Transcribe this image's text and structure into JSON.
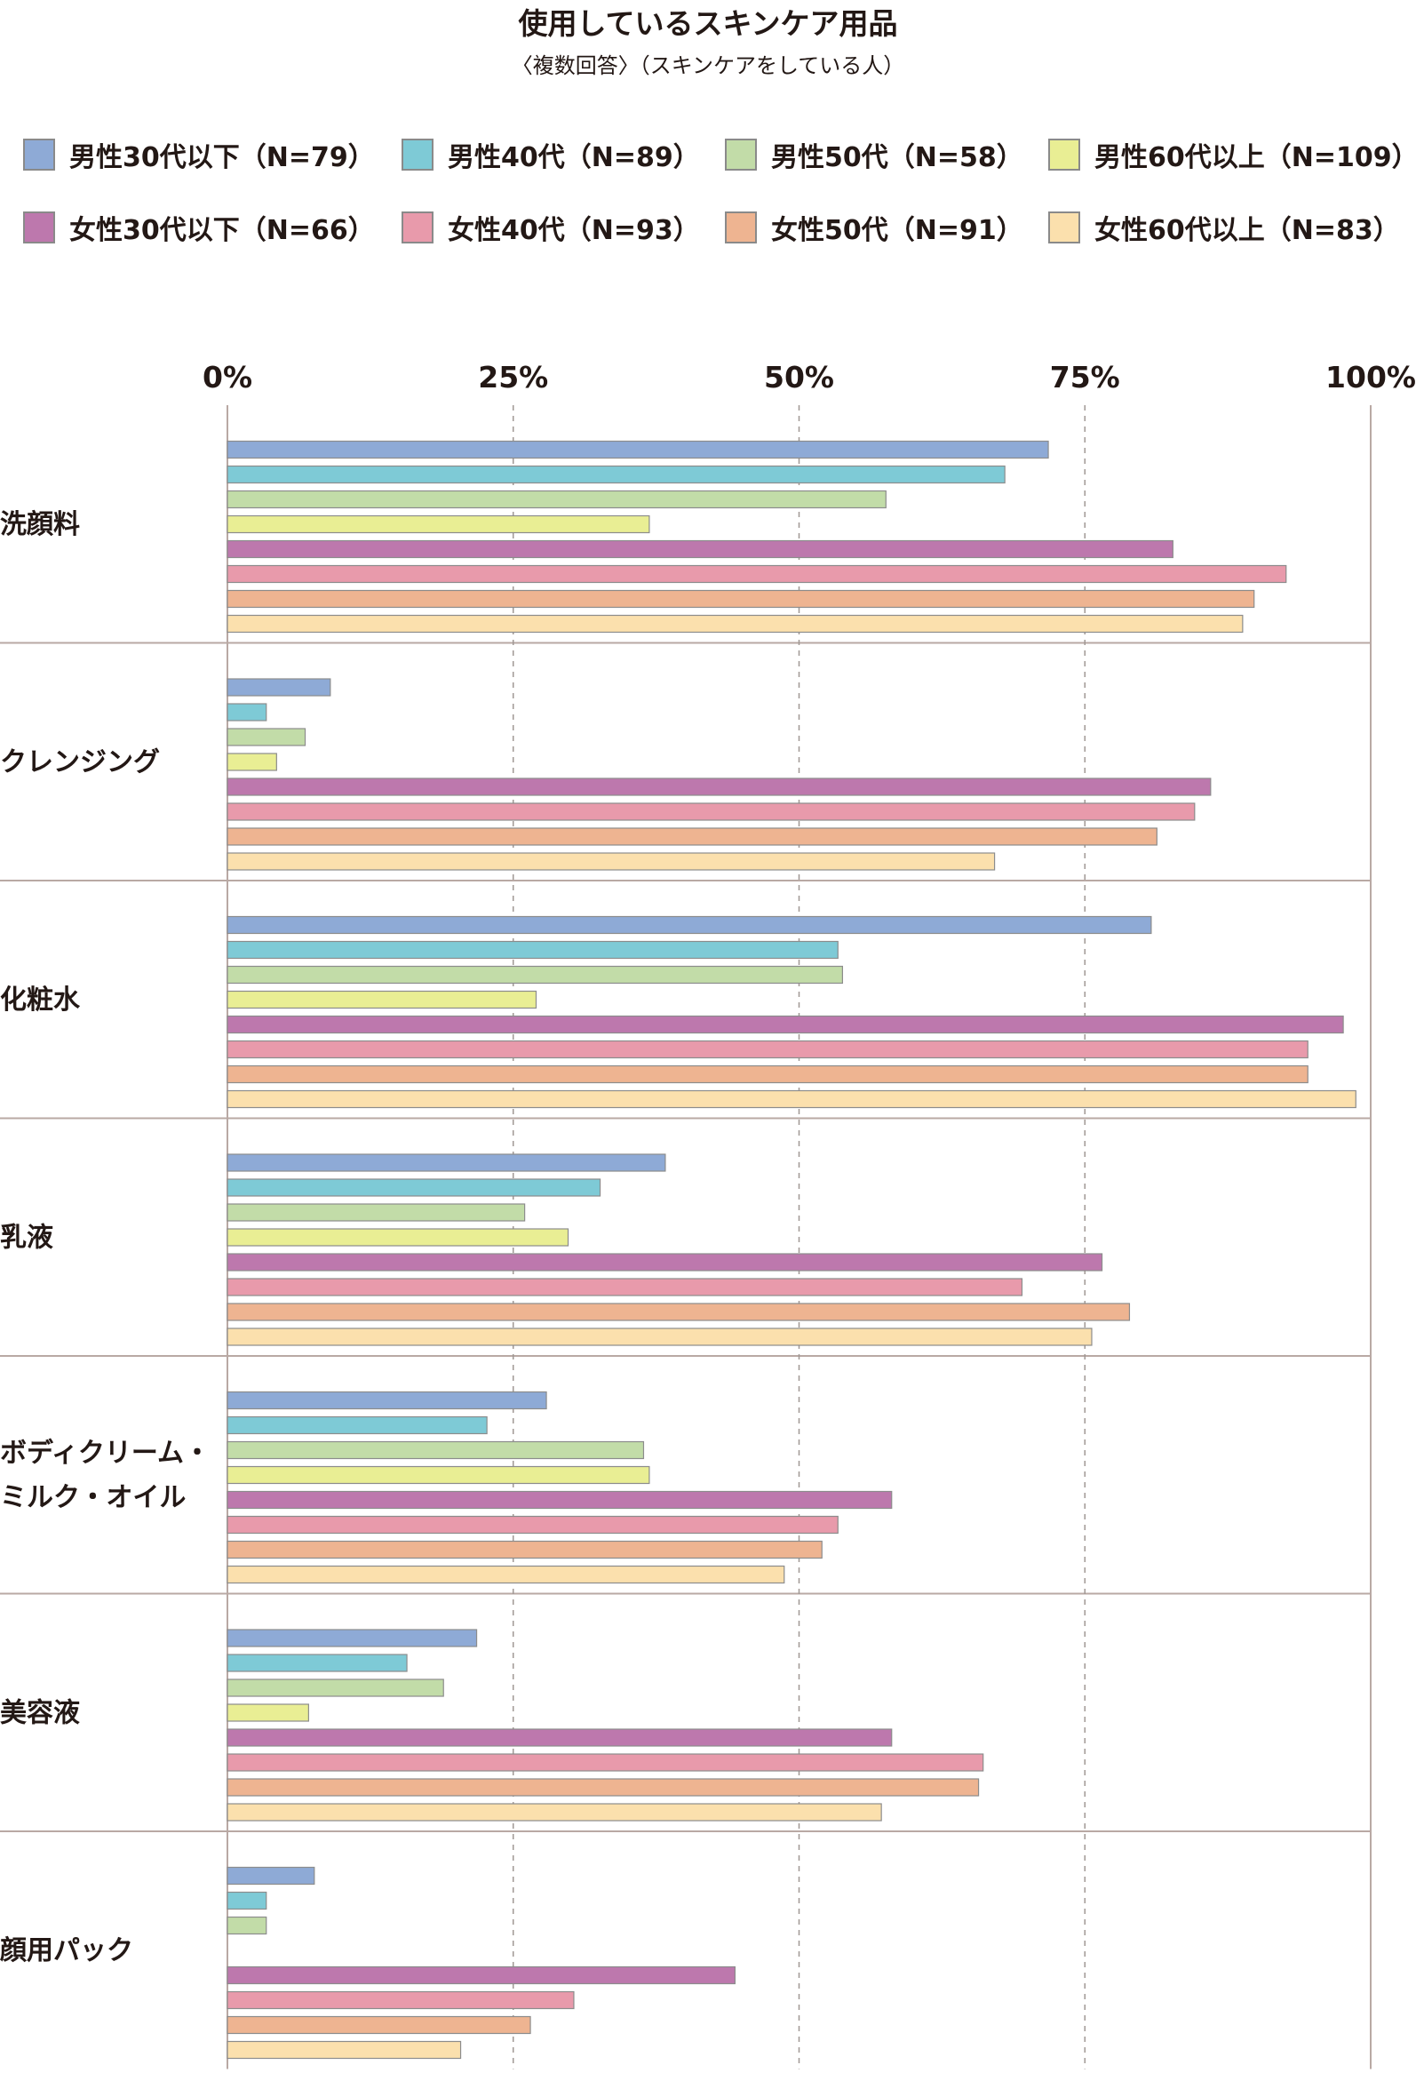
{
  "chart_data": {
    "type": "bar",
    "orientation": "horizontal",
    "title": "使用しているスキンケア用品",
    "subtitle": "〈複数回答〉（スキンケアをしている人）",
    "xlim": [
      0,
      100
    ],
    "x_ticks": [
      "0%",
      "25%",
      "50%",
      "75%",
      "100%"
    ],
    "grid": true,
    "legend_position": "top",
    "categories": [
      [
        "洗顔料"
      ],
      [
        "クレンジング"
      ],
      [
        "化粧水"
      ],
      [
        "乳液"
      ],
      [
        "ボディクリーム・",
        "ミルク・オイル"
      ],
      [
        "美容液"
      ],
      [
        "顔用パック"
      ]
    ],
    "series": [
      {
        "name": "男性30代以下（N=79）",
        "color": "#8eaad6",
        "values": [
          71.8,
          9.0,
          80.8,
          38.3,
          27.9,
          21.8,
          7.6
        ]
      },
      {
        "name": "男性40代（N=89）",
        "color": "#7ecad6",
        "values": [
          68.0,
          3.4,
          53.4,
          32.6,
          22.7,
          15.7,
          3.4
        ]
      },
      {
        "name": "男性50代（N=58）",
        "color": "#c2dca8",
        "values": [
          57.6,
          6.8,
          53.8,
          26.0,
          36.4,
          18.9,
          3.4
        ]
      },
      {
        "name": "男性60代以上（N=109）",
        "color": "#e9ee94",
        "values": [
          36.9,
          4.3,
          27.0,
          29.8,
          36.9,
          7.1,
          0
        ]
      },
      {
        "name": "女性30代以下（N=66）",
        "color": "#bd78ad",
        "values": [
          82.7,
          86.0,
          97.6,
          76.5,
          58.1,
          58.1,
          44.4
        ]
      },
      {
        "name": "女性40代（N=93）",
        "color": "#e89aab",
        "values": [
          92.6,
          84.6,
          94.5,
          69.5,
          53.4,
          66.1,
          30.3
        ]
      },
      {
        "name": "女性50代（N=91）",
        "color": "#eeb491",
        "values": [
          89.8,
          81.3,
          94.5,
          78.9,
          52.0,
          65.7,
          26.5
        ]
      },
      {
        "name": "女性60代以上（N=83）",
        "color": "#fbe0ad",
        "values": [
          88.8,
          67.1,
          98.7,
          75.6,
          48.7,
          57.2,
          20.4
        ]
      }
    ]
  }
}
